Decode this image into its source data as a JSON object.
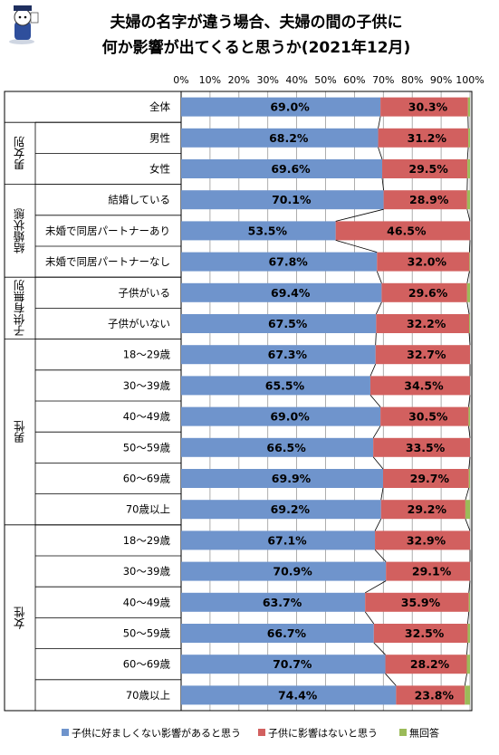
{
  "chart_data": {
    "type": "bar",
    "stacked": true,
    "orientation": "horizontal",
    "title_lines": [
      "夫婦の名字が違う場合、夫婦の間の子供に",
      "何か影響が出てくると思うか(2021年12月)"
    ],
    "xlim": [
      0,
      100
    ],
    "x_ticks": [
      "0%",
      "10%",
      "20%",
      "30%",
      "40%",
      "50%",
      "60%",
      "70%",
      "80%",
      "90%",
      "100%"
    ],
    "groups": [
      {
        "label": "",
        "rows": [
          0
        ]
      },
      {
        "label": "男女別",
        "rows": [
          1,
          2
        ]
      },
      {
        "label": "結婚状態",
        "rows": [
          3,
          4,
          5
        ]
      },
      {
        "label": "子供有無別",
        "rows": [
          6,
          7
        ]
      },
      {
        "label": "男性",
        "rows": [
          8,
          9,
          10,
          11,
          12,
          13
        ]
      },
      {
        "label": "女性",
        "rows": [
          14,
          15,
          16,
          17,
          18,
          19
        ]
      }
    ],
    "categories": [
      "全体",
      "男性",
      "女性",
      "結婚している",
      "未婚で同居パートナーあり",
      "未婚で同居パートナーなし",
      "子供がいる",
      "子供がいない",
      "18～29歳",
      "30～39歳",
      "40～49歳",
      "50～59歳",
      "60～69歳",
      "70歳以上",
      "18～29歳",
      "30～39歳",
      "40～49歳",
      "50～59歳",
      "60～69歳",
      "70歳以上"
    ],
    "series": [
      {
        "name": "子供に好ましくない影響があると思う",
        "color": "#6f94cc",
        "values": [
          69.0,
          68.2,
          69.6,
          70.1,
          53.5,
          67.8,
          69.4,
          67.5,
          67.3,
          65.5,
          69.0,
          66.5,
          69.9,
          69.2,
          67.1,
          70.9,
          63.7,
          66.7,
          70.7,
          74.4
        ],
        "labels": [
          "69.0%",
          "68.2%",
          "69.6%",
          "70.1%",
          "53.5%",
          "67.8%",
          "69.4%",
          "67.5%",
          "67.3%",
          "65.5%",
          "69.0%",
          "66.5%",
          "69.9%",
          "69.2%",
          "67.1%",
          "70.9%",
          "63.7%",
          "66.7%",
          "70.7%",
          "74.4%"
        ]
      },
      {
        "name": "子供に影響はないと思う",
        "color": "#d2605f",
        "values": [
          30.3,
          31.2,
          29.5,
          28.9,
          46.5,
          32.0,
          29.6,
          32.2,
          32.7,
          34.5,
          30.5,
          33.5,
          29.7,
          29.2,
          32.9,
          29.1,
          35.9,
          32.5,
          28.2,
          23.8
        ],
        "labels": [
          "30.3%",
          "31.2%",
          "29.5%",
          "28.9%",
          "46.5%",
          "32.0%",
          "29.6%",
          "32.2%",
          "32.7%",
          "34.5%",
          "30.5%",
          "33.5%",
          "29.7%",
          "29.2%",
          "32.9%",
          "29.1%",
          "35.9%",
          "32.5%",
          "28.2%",
          "23.8%"
        ]
      },
      {
        "name": "無回答",
        "color": "#9bbb59",
        "values": [
          0.7,
          0.6,
          0.9,
          1.0,
          0.0,
          0.2,
          1.0,
          0.3,
          0.0,
          0.0,
          0.5,
          0.0,
          0.4,
          1.6,
          0.0,
          0.0,
          0.4,
          0.8,
          1.1,
          1.8
        ]
      }
    ],
    "legend_position": "bottom",
    "grid": true
  }
}
